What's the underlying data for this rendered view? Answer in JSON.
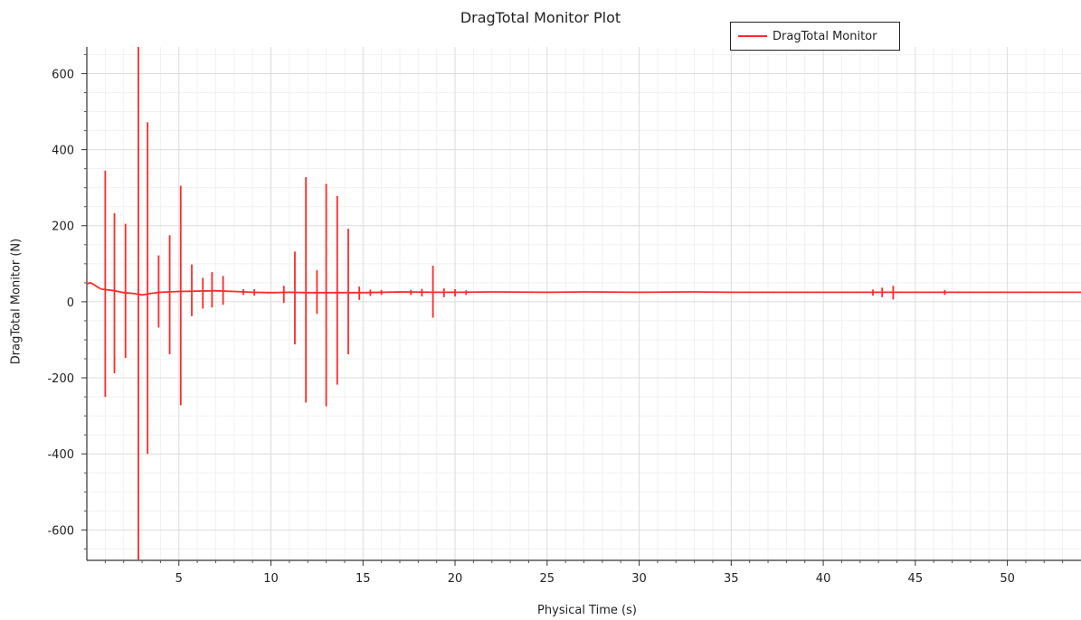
{
  "chart_data": {
    "type": "line",
    "title": "DragTotal Monitor Plot",
    "xlabel": "Physical Time (s)",
    "ylabel": "DragTotal Monitor (N)",
    "xlim": [
      0,
      54
    ],
    "ylim": [
      -680,
      670
    ],
    "x_ticks": [
      5,
      10,
      15,
      20,
      25,
      30,
      35,
      40,
      45,
      50
    ],
    "y_ticks": [
      600,
      400,
      200,
      0,
      -200,
      -400,
      -600
    ],
    "grid": true,
    "legend_position": "top-right",
    "series": [
      {
        "name": "DragTotal Monitor",
        "color": "#ff2a2a",
        "baseline": [
          [
            0.0,
            47
          ],
          [
            0.2,
            50
          ],
          [
            0.4,
            45
          ],
          [
            0.6,
            38
          ],
          [
            0.8,
            33
          ],
          [
            1.0,
            32
          ],
          [
            1.5,
            29
          ],
          [
            2.0,
            24
          ],
          [
            2.5,
            22
          ],
          [
            3.0,
            18
          ],
          [
            3.5,
            22
          ],
          [
            4.0,
            25
          ],
          [
            5.0,
            27
          ],
          [
            6.0,
            28
          ],
          [
            7.0,
            29
          ],
          [
            8.0,
            27
          ],
          [
            9.0,
            25
          ],
          [
            10.0,
            24
          ],
          [
            11.0,
            25
          ],
          [
            12.0,
            24
          ],
          [
            13.0,
            24
          ],
          [
            14.0,
            24
          ],
          [
            15.0,
            24
          ],
          [
            17.0,
            26
          ],
          [
            19.0,
            25
          ],
          [
            20.0,
            25
          ],
          [
            22.0,
            26
          ],
          [
            25.0,
            25
          ],
          [
            27.0,
            26
          ],
          [
            30.0,
            25
          ],
          [
            33.0,
            26
          ],
          [
            35.0,
            25
          ],
          [
            40.0,
            25
          ],
          [
            45.0,
            25
          ],
          [
            50.0,
            25
          ],
          [
            54.0,
            25
          ]
        ],
        "spikes": [
          {
            "x": 1.0,
            "max": 345,
            "min": -250
          },
          {
            "x": 1.5,
            "max": 233,
            "min": -188
          },
          {
            "x": 2.1,
            "max": 205,
            "min": -148
          },
          {
            "x": 2.8,
            "max": 670,
            "min": -680
          },
          {
            "x": 3.3,
            "max": 472,
            "min": -400
          },
          {
            "x": 3.9,
            "max": 122,
            "min": -68
          },
          {
            "x": 4.5,
            "max": 175,
            "min": -138
          },
          {
            "x": 5.1,
            "max": 305,
            "min": -272
          },
          {
            "x": 5.7,
            "max": 98,
            "min": -38
          },
          {
            "x": 6.3,
            "max": 63,
            "min": -18
          },
          {
            "x": 6.8,
            "max": 78,
            "min": -15
          },
          {
            "x": 7.4,
            "max": 68,
            "min": -8
          },
          {
            "x": 8.5,
            "max": 33,
            "min": 18
          },
          {
            "x": 9.1,
            "max": 33,
            "min": 16
          },
          {
            "x": 10.7,
            "max": 42,
            "min": -3
          },
          {
            "x": 11.3,
            "max": 132,
            "min": -112
          },
          {
            "x": 11.9,
            "max": 328,
            "min": -265
          },
          {
            "x": 12.5,
            "max": 83,
            "min": -32
          },
          {
            "x": 13.0,
            "max": 310,
            "min": -275
          },
          {
            "x": 13.6,
            "max": 278,
            "min": -218
          },
          {
            "x": 14.2,
            "max": 192,
            "min": -138
          },
          {
            "x": 14.8,
            "max": 40,
            "min": 5
          },
          {
            "x": 15.4,
            "max": 32,
            "min": 15
          },
          {
            "x": 16.0,
            "max": 31,
            "min": 18
          },
          {
            "x": 17.6,
            "max": 31,
            "min": 18
          },
          {
            "x": 18.2,
            "max": 34,
            "min": 14
          },
          {
            "x": 18.8,
            "max": 95,
            "min": -42
          },
          {
            "x": 19.4,
            "max": 35,
            "min": 12
          },
          {
            "x": 20.0,
            "max": 33,
            "min": 14
          },
          {
            "x": 20.6,
            "max": 30,
            "min": 18
          },
          {
            "x": 42.7,
            "max": 32,
            "min": 16
          },
          {
            "x": 43.2,
            "max": 37,
            "min": 12
          },
          {
            "x": 43.8,
            "max": 42,
            "min": 6
          },
          {
            "x": 46.6,
            "max": 31,
            "min": 18
          }
        ]
      }
    ]
  }
}
